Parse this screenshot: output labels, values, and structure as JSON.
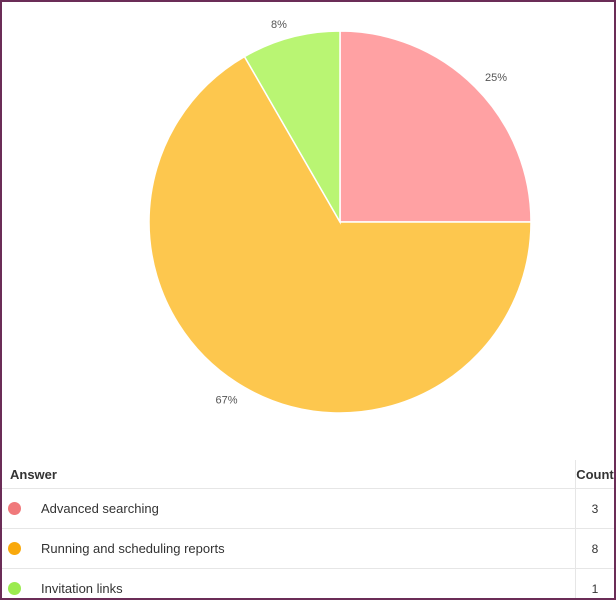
{
  "chart_data": {
    "type": "pie",
    "slices": [
      {
        "label": "Advanced searching",
        "value": 3,
        "percent_label": "25%",
        "color": "#FFA1A3"
      },
      {
        "label": "Running and scheduling reports",
        "value": 8,
        "percent_label": "67%",
        "color": "#FDC74E"
      },
      {
        "label": "Invitation links",
        "value": 1,
        "percent_label": "8%",
        "color": "#B9F573"
      }
    ]
  },
  "table": {
    "headers": {
      "answer": "Answer",
      "count": "Count"
    },
    "rows": [
      {
        "answer": "Advanced searching",
        "count": "3",
        "dot_color": "#F0797B"
      },
      {
        "answer": "Running and scheduling reports",
        "count": "8",
        "dot_color": "#F9A90C"
      },
      {
        "answer": "Invitation links",
        "count": "1",
        "dot_color": "#9BEB4F"
      }
    ]
  }
}
